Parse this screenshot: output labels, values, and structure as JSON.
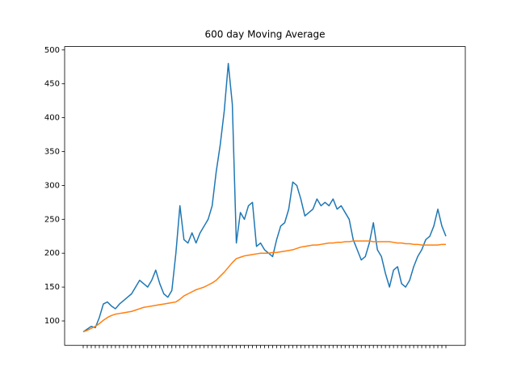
{
  "chart_data": {
    "type": "line",
    "title": "600 day Moving Average",
    "categories": [
      null,
      null,
      null,
      null,
      null,
      null,
      null,
      null,
      null,
      null,
      null,
      null,
      null,
      null,
      null,
      null,
      null,
      null,
      null,
      null,
      null,
      null,
      null,
      null,
      null,
      null,
      null,
      null,
      null,
      null,
      null,
      null,
      null,
      null,
      null,
      null,
      null,
      null,
      null,
      null,
      null,
      null,
      null,
      null,
      null,
      null,
      null,
      null,
      null,
      null,
      null,
      null,
      null,
      null,
      null,
      null,
      null,
      null,
      null,
      null,
      null,
      null,
      null,
      null,
      null,
      null,
      null,
      null,
      null,
      null,
      null,
      null,
      null,
      null,
      null,
      null,
      null,
      null,
      null,
      null,
      null,
      null,
      null,
      null,
      null,
      null,
      null,
      null,
      null,
      null,
      null
    ],
    "series": [
      {
        "color": "#1f77b4",
        "values": [
          84,
          88,
          92,
          90,
          105,
          125,
          128,
          122,
          118,
          125,
          130,
          135,
          140,
          150,
          160,
          155,
          150,
          160,
          175,
          155,
          140,
          135,
          145,
          200,
          270,
          220,
          215,
          230,
          215,
          230,
          240,
          250,
          270,
          320,
          360,
          410,
          480,
          420,
          215,
          260,
          250,
          270,
          275,
          210,
          215,
          205,
          200,
          195,
          220,
          240,
          245,
          265,
          305,
          300,
          280,
          255,
          260,
          265,
          280,
          270,
          275,
          270,
          280,
          265,
          270,
          260,
          250,
          220,
          205,
          190,
          195,
          215,
          245,
          205,
          195,
          170,
          150,
          175,
          180,
          155,
          150,
          160,
          180,
          195,
          205,
          220,
          225,
          240,
          265,
          240,
          225
        ]
      },
      {
        "color": "#ff7f0e",
        "values": [
          84,
          86,
          89,
          92,
          96,
          101,
          105,
          108,
          110,
          111,
          112,
          113,
          114,
          116,
          118,
          120,
          121,
          122,
          123,
          124,
          125,
          126,
          127,
          128,
          132,
          137,
          140,
          143,
          146,
          148,
          150,
          153,
          156,
          160,
          166,
          172,
          179,
          186,
          192,
          194,
          196,
          197,
          198,
          199,
          200,
          200,
          200,
          201,
          201,
          202,
          203,
          204,
          205,
          207,
          209,
          210,
          211,
          212,
          212,
          213,
          214,
          215,
          215,
          216,
          216,
          217,
          217,
          218,
          218,
          218,
          218,
          218,
          217,
          217,
          217,
          217,
          217,
          216,
          215,
          215,
          214,
          214,
          213,
          213,
          212,
          212,
          212,
          212,
          212,
          213,
          213
        ]
      }
    ],
    "ylim": [
      64,
      505
    ],
    "yticks": [
      100,
      150,
      200,
      250,
      300,
      350,
      400,
      450,
      500
    ]
  }
}
